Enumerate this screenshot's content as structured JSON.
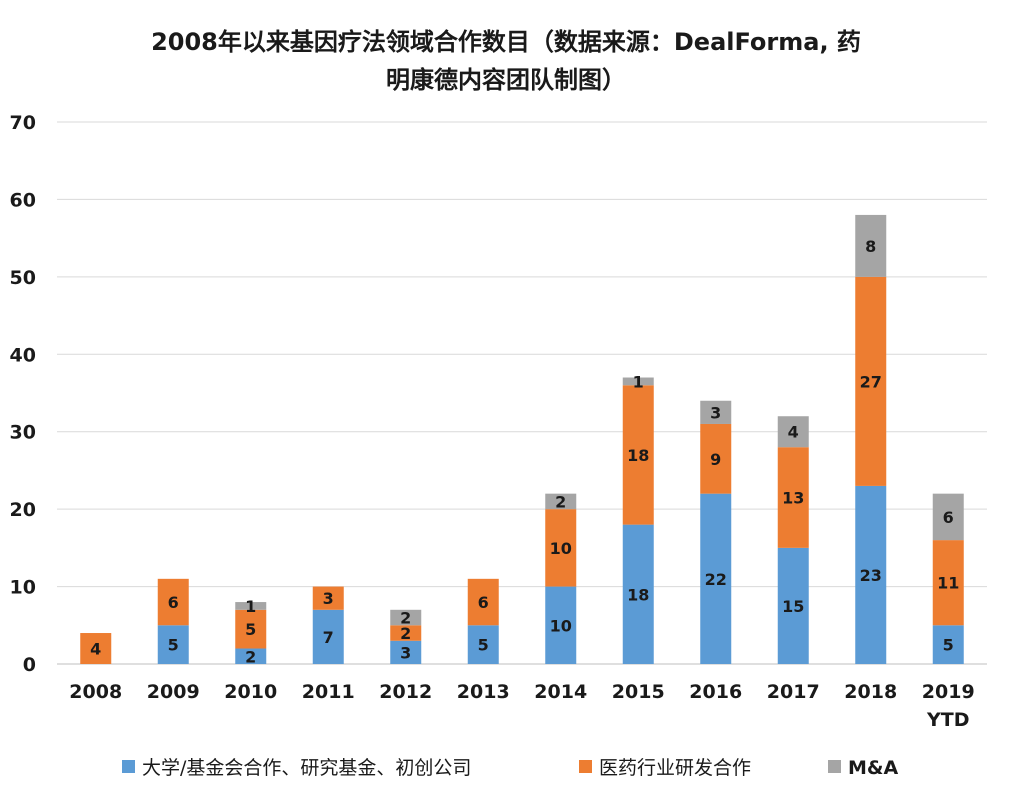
{
  "chart_data": {
    "type": "bar",
    "stacked": true,
    "title_lines": [
      "2008年以来基因疗法领域合作数目（数据来源：DealForma, 药",
      "明康德内容团队制图）"
    ],
    "categories": [
      [
        "2008"
      ],
      [
        "2009"
      ],
      [
        "2010"
      ],
      [
        "2011"
      ],
      [
        "2012"
      ],
      [
        "2013"
      ],
      [
        "2014"
      ],
      [
        "2015"
      ],
      [
        "2016"
      ],
      [
        "2017"
      ],
      [
        "2018"
      ],
      [
        "2019",
        "YTD"
      ]
    ],
    "ylim": [
      0,
      70
    ],
    "yticks": [
      0,
      10,
      20,
      30,
      40,
      50,
      60,
      70
    ],
    "grid": true,
    "legend_position": "bottom",
    "series": [
      {
        "name": "大学/基金会合作、研究基金、初创公司",
        "color": "#5b9bd5",
        "values": [
          0,
          5,
          2,
          7,
          3,
          5,
          10,
          18,
          22,
          15,
          23,
          5
        ]
      },
      {
        "name": "医药行业研发合作",
        "color": "#ed7d31",
        "values": [
          4,
          6,
          5,
          3,
          2,
          6,
          10,
          18,
          9,
          13,
          27,
          11
        ]
      },
      {
        "name": "M&A",
        "color": "#a5a5a5",
        "values": [
          0,
          0,
          1,
          0,
          2,
          0,
          2,
          1,
          3,
          4,
          8,
          6
        ]
      }
    ]
  }
}
